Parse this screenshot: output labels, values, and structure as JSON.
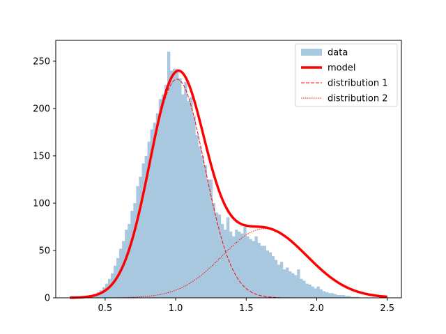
{
  "chart_data": {
    "type": "histogram",
    "title": "",
    "xlabel": "",
    "ylabel": "",
    "xlim": [
      0.15,
      2.6
    ],
    "ylim": [
      0,
      272
    ],
    "xticks": [
      0.5,
      1.0,
      1.5,
      2.0,
      2.5
    ],
    "xtick_labels": [
      "0.5",
      "1.0",
      "1.5",
      "2.0",
      "2.5"
    ],
    "yticks": [
      0,
      50,
      100,
      150,
      200,
      250
    ],
    "ytick_labels": [
      "0",
      "50",
      "100",
      "150",
      "200",
      "250"
    ],
    "grid": false,
    "legend_position": "top-right",
    "histogram": {
      "name": "data",
      "color": "#a8c8e0",
      "bin_start": 0.4,
      "bin_width": 0.02,
      "counts": [
        3,
        4,
        6,
        8,
        11,
        15,
        20,
        26,
        34,
        42,
        52,
        60,
        72,
        78,
        92,
        100,
        118,
        128,
        142,
        150,
        165,
        178,
        185,
        195,
        210,
        215,
        225,
        260,
        240,
        242,
        242,
        232,
        215,
        228,
        208,
        212,
        192,
        172,
        160,
        150,
        140,
        125,
        125,
        100,
        90,
        88,
        78,
        72,
        85,
        70,
        65,
        72,
        70,
        68,
        75,
        65,
        62,
        60,
        65,
        58,
        55,
        55,
        50,
        48,
        44,
        40,
        35,
        38,
        30,
        32,
        28,
        26,
        24,
        30,
        20,
        18,
        15,
        14,
        12,
        10,
        12,
        9,
        7,
        6,
        5,
        5,
        4,
        3,
        3,
        3,
        2,
        2,
        1,
        1,
        1
      ]
    },
    "model": {
      "name": "model",
      "color": "#ff0000",
      "x_min": 0.25,
      "x_max": 2.5,
      "components": [
        {
          "name": "distribution 1",
          "amplitude": 231,
          "mean": 1.01,
          "sigma": 0.195,
          "style": "dashed",
          "color": "#ff0000"
        },
        {
          "name": "distribution 2",
          "amplitude": 73,
          "mean": 1.63,
          "sigma": 0.3,
          "style": "dotted",
          "color": "#ff0000"
        }
      ]
    },
    "legend": [
      {
        "label": "data",
        "kind": "patch"
      },
      {
        "label": "model",
        "kind": "solid"
      },
      {
        "label": "distribution 1",
        "kind": "dashed"
      },
      {
        "label": "distribution 2",
        "kind": "dotted"
      }
    ]
  }
}
